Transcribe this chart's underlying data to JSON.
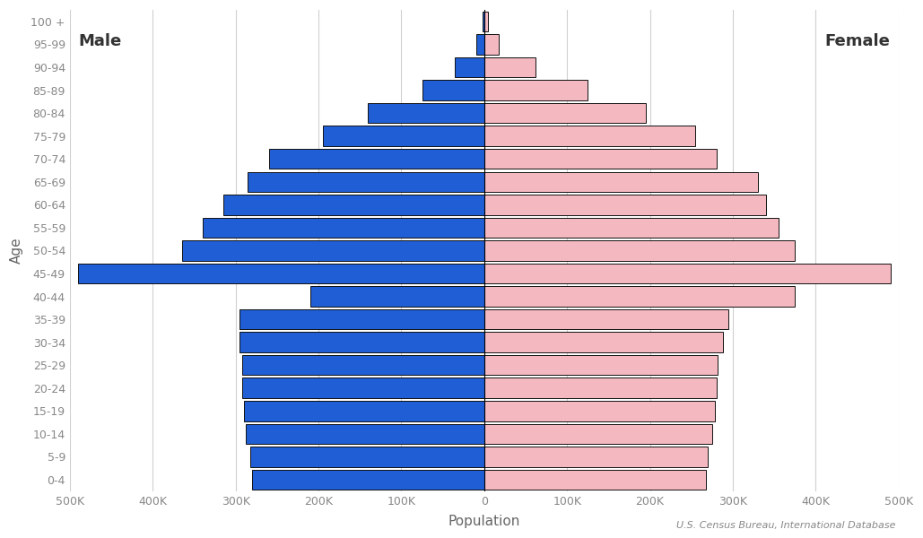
{
  "age_groups": [
    "0-4",
    "5-9",
    "10-14",
    "15-19",
    "20-24",
    "25-29",
    "30-34",
    "35-39",
    "40-44",
    "45-49",
    "50-54",
    "55-59",
    "60-64",
    "65-69",
    "70-74",
    "75-79",
    "80-84",
    "85-89",
    "90-94",
    "95-99",
    "100 +"
  ],
  "male": [
    280000,
    282000,
    288000,
    290000,
    292000,
    292000,
    295000,
    295000,
    210000,
    490000,
    365000,
    340000,
    315000,
    285000,
    260000,
    195000,
    140000,
    75000,
    35000,
    10000,
    2500
  ],
  "female": [
    268000,
    270000,
    275000,
    278000,
    280000,
    282000,
    288000,
    295000,
    375000,
    490000,
    375000,
    355000,
    340000,
    330000,
    280000,
    255000,
    195000,
    125000,
    62000,
    18000,
    4500
  ],
  "male_color": "#1f5ed4",
  "female_color": "#f4b8c0",
  "male_label": "Male",
  "female_label": "Female",
  "xlabel": "Population",
  "ylabel": "Age",
  "source": "U.S. Census Bureau, International Database",
  "xlim": 500000,
  "bar_edge_color": "#111111",
  "bar_linewidth": 0.7,
  "background_color": "#ffffff",
  "grid_color": "#d0d0d0",
  "tick_color": "#888888",
  "label_color": "#666666",
  "font_family": "DejaVu Sans"
}
